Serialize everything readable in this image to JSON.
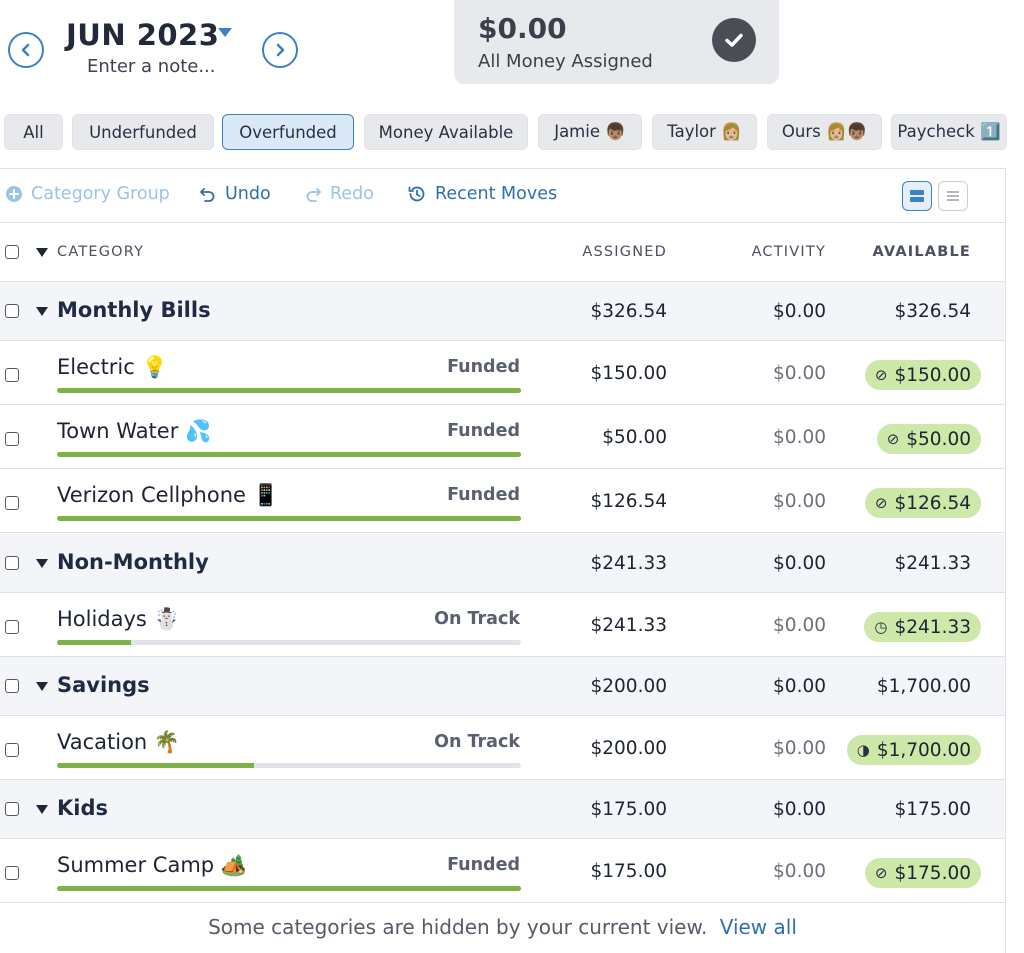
{
  "header": {
    "month": "JUN 2023",
    "note_placeholder": "Enter a note...",
    "prev_glyph": "‹",
    "next_glyph": "›",
    "assigned_amount": "$0.00",
    "assigned_label": "All Money Assigned"
  },
  "filters": [
    "All",
    "Underfunded",
    "Overfunded",
    "Money Available",
    "Jamie 👦🏽",
    "Taylor 👩🏼",
    "Ours 👩🏼👦🏽",
    "Paycheck 1️⃣"
  ],
  "active_filter": "Overfunded",
  "toolbar": {
    "category_group": "Category Group",
    "undo": "Undo",
    "redo": "Redo",
    "recent_moves": "Recent Moves"
  },
  "columns": {
    "category": "CATEGORY",
    "assigned": "ASSIGNED",
    "activity": "ACTIVITY",
    "available": "AVAILABLE"
  },
  "groups": [
    {
      "name": "Monthly Bills",
      "assigned": "$326.54",
      "activity": "$0.00",
      "available": "$326.54",
      "categories": [
        {
          "name": "Electric 💡",
          "status": "Funded",
          "assigned": "$150.00",
          "activity": "$0.00",
          "available": "$150.00",
          "progress": 1.0,
          "icon": "check-circle-icon"
        },
        {
          "name": "Town Water 💦",
          "status": "Funded",
          "assigned": "$50.00",
          "activity": "$0.00",
          "available": "$50.00",
          "progress": 1.0,
          "icon": "check-circle-icon"
        },
        {
          "name": "Verizon Cellphone 📱",
          "status": "Funded",
          "assigned": "$126.54",
          "activity": "$0.00",
          "available": "$126.54",
          "progress": 1.0,
          "icon": "check-circle-icon"
        }
      ]
    },
    {
      "name": "Non-Monthly",
      "assigned": "$241.33",
      "activity": "$0.00",
      "available": "$241.33",
      "categories": [
        {
          "name": "Holidays ☃️",
          "status": "On Track",
          "assigned": "$241.33",
          "activity": "$0.00",
          "available": "$241.33",
          "progress": 0.16,
          "icon": "clock-icon"
        }
      ]
    },
    {
      "name": "Savings",
      "assigned": "$200.00",
      "activity": "$0.00",
      "available": "$1,700.00",
      "categories": [
        {
          "name": "Vacation 🌴",
          "status": "On Track",
          "assigned": "$200.00",
          "activity": "$0.00",
          "available": "$1,700.00",
          "progress": 0.425,
          "icon": "half-circle-icon"
        }
      ]
    },
    {
      "name": "Kids",
      "assigned": "$175.00",
      "activity": "$0.00",
      "available": "$175.00",
      "categories": [
        {
          "name": "Summer Camp 🏕️",
          "status": "Funded",
          "assigned": "$175.00",
          "activity": "$0.00",
          "available": "$175.00",
          "progress": 1.0,
          "icon": "check-circle-icon"
        }
      ]
    }
  ],
  "footer": {
    "text": "Some categories are hidden by your current view.",
    "link": "View all"
  },
  "colors": {
    "accent": "#3b82c4",
    "progress": "#7cb342",
    "available_pill": "#cde8a8"
  }
}
